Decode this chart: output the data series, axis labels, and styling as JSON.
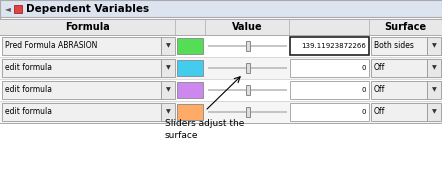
{
  "title": "Dependent Variables",
  "col_formula": "Formula",
  "col_value": "Value",
  "col_surface": "Surface",
  "rows": [
    {
      "formula": "Pred Formula ABRASION",
      "color": "#55dd55",
      "value": "139.11923872266",
      "surface": "Both sides"
    },
    {
      "formula": "edit formula",
      "color": "#44ccee",
      "value": "0",
      "surface": "Off"
    },
    {
      "formula": "edit formula",
      "color": "#cc88ee",
      "value": "0",
      "surface": "Off"
    },
    {
      "formula": "edit formula",
      "color": "#ffaa66",
      "value": "0",
      "surface": "Off"
    }
  ],
  "annotation": "Sliders adjust the\nsurface",
  "title_bar_color": "#dce4f0",
  "header_bg": "#e8e8e8",
  "row_bg": "#f8f8f8",
  "border_color": "#aaaaaa",
  "divider_color": "#cccccc",
  "text_color": "#000000",
  "title_icon_color": "#cc3333",
  "title_triangle_color": "#555555",
  "slider_track_color": "#bbbbbb",
  "slider_handle_color": "#dddddd",
  "slider_handle_edge": "#888888",
  "value_box_thick_edge": "#222222",
  "value_box_thin_edge": "#aaaaaa",
  "dropdown_bg": "#e8e8e8",
  "dropdown_edge": "#999999"
}
